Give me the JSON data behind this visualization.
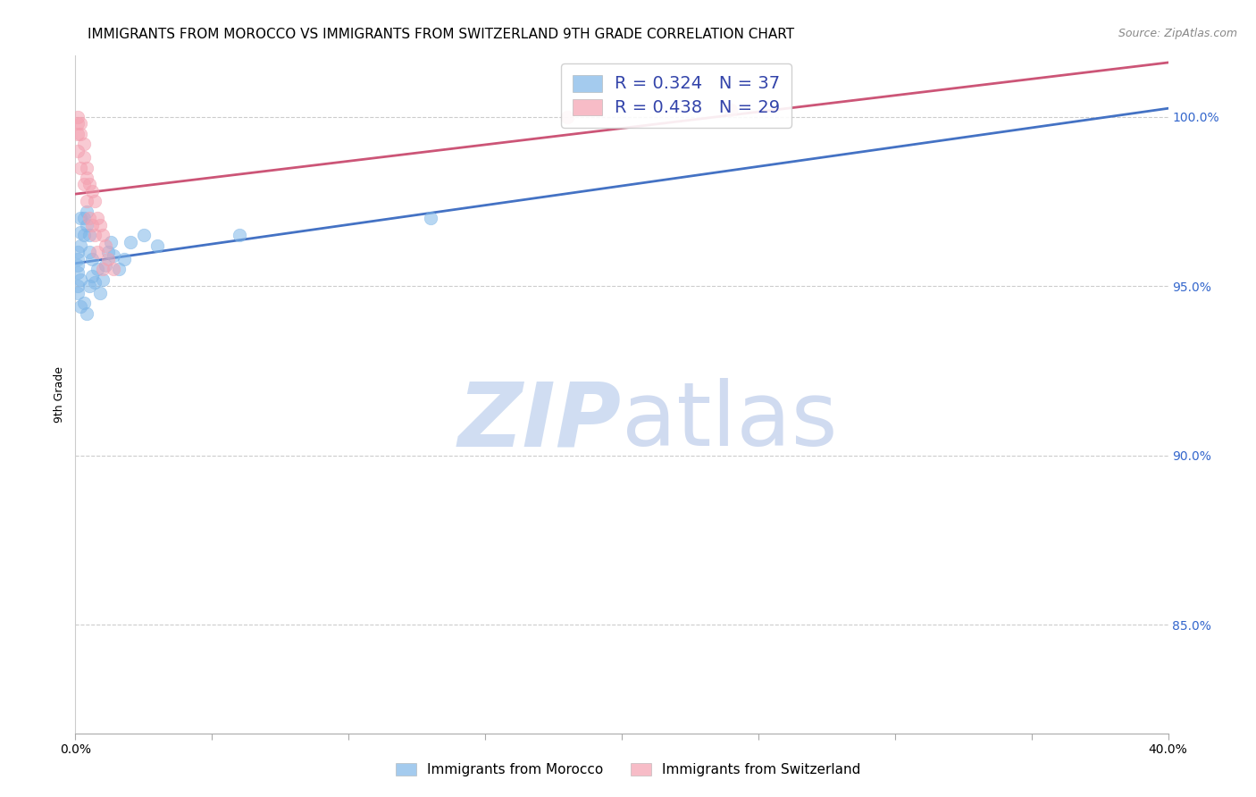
{
  "title": "IMMIGRANTS FROM MOROCCO VS IMMIGRANTS FROM SWITZERLAND 9TH GRADE CORRELATION CHART",
  "source": "Source: ZipAtlas.com",
  "ylabel": "9th Grade",
  "xlim": [
    0.0,
    0.4
  ],
  "ylim": [
    0.818,
    1.018
  ],
  "xticks": [
    0.0,
    0.05,
    0.1,
    0.15,
    0.2,
    0.25,
    0.3,
    0.35,
    0.4
  ],
  "ytick_labels": [
    "85.0%",
    "90.0%",
    "95.0%",
    "100.0%"
  ],
  "yticks": [
    0.85,
    0.9,
    0.95,
    1.0
  ],
  "morocco_color": "#7EB6E8",
  "switzerland_color": "#F4A0B0",
  "morocco_R": 0.324,
  "morocco_N": 37,
  "switzerland_R": 0.438,
  "switzerland_N": 29,
  "morocco_line_color": "#4472C4",
  "switzerland_line_color": "#CC5577",
  "legend_label_morocco": "Immigrants from Morocco",
  "legend_label_switzerland": "Immigrants from Switzerland",
  "morocco_x": [
    0.001,
    0.001,
    0.001,
    0.001,
    0.002,
    0.002,
    0.002,
    0.003,
    0.003,
    0.004,
    0.004,
    0.005,
    0.005,
    0.006,
    0.006,
    0.007,
    0.008,
    0.009,
    0.01,
    0.011,
    0.012,
    0.013,
    0.014,
    0.016,
    0.018,
    0.02,
    0.025,
    0.03,
    0.001,
    0.002,
    0.003,
    0.004,
    0.005,
    0.001,
    0.002,
    0.06,
    0.13
  ],
  "morocco_y": [
    0.96,
    0.956,
    0.954,
    0.958,
    0.962,
    0.966,
    0.97,
    0.965,
    0.97,
    0.968,
    0.972,
    0.965,
    0.96,
    0.958,
    0.953,
    0.951,
    0.955,
    0.948,
    0.952,
    0.956,
    0.96,
    0.963,
    0.959,
    0.955,
    0.958,
    0.963,
    0.965,
    0.962,
    0.95,
    0.952,
    0.945,
    0.942,
    0.95,
    0.948,
    0.944,
    0.965,
    0.97
  ],
  "switzerland_x": [
    0.001,
    0.001,
    0.001,
    0.002,
    0.002,
    0.003,
    0.003,
    0.004,
    0.004,
    0.005,
    0.006,
    0.007,
    0.008,
    0.009,
    0.01,
    0.011,
    0.012,
    0.014,
    0.001,
    0.002,
    0.003,
    0.004,
    0.005,
    0.006,
    0.007,
    0.008,
    0.01,
    0.18,
    0.24
  ],
  "switzerland_y": [
    0.998,
    0.995,
    1.0,
    0.998,
    0.995,
    0.992,
    0.988,
    0.985,
    0.982,
    0.98,
    0.978,
    0.975,
    0.97,
    0.968,
    0.965,
    0.962,
    0.958,
    0.955,
    0.99,
    0.985,
    0.98,
    0.975,
    0.97,
    0.968,
    0.965,
    0.96,
    0.955,
    1.0,
    1.002
  ],
  "watermark_zip": "ZIP",
  "watermark_atlas": "atlas",
  "background_color": "#FFFFFF",
  "grid_color": "#CCCCCC",
  "title_fontsize": 11,
  "axis_label_fontsize": 9,
  "tick_fontsize": 10
}
